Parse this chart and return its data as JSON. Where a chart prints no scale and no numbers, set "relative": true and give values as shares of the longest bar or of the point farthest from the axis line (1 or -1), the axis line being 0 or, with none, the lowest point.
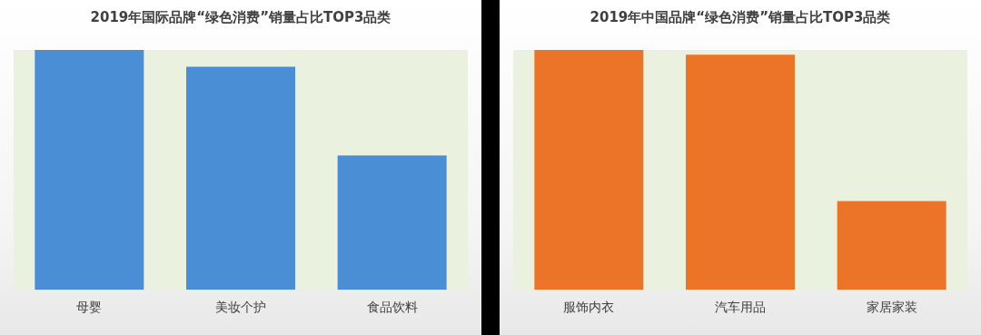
{
  "chart_data": [
    {
      "type": "bar",
      "title": "2019年国际品牌“绿色消费”销量占比TOP3品类",
      "categories": [
        "母婴",
        "美妆个护",
        "食品饮料"
      ],
      "values": [
        1,
        0.93,
        0.56
      ],
      "color": "#4a8fd6",
      "relative": true,
      "grid": false,
      "legend": false
    },
    {
      "type": "bar",
      "title": "2019年中国品牌“绿色消费”销量占比TOP3品类",
      "categories": [
        "服饰内衣",
        "汽车用品",
        "家居家装"
      ],
      "values": [
        1,
        0.98,
        0.37
      ],
      "color": "#eb7428",
      "relative": true,
      "grid": false,
      "legend": false
    }
  ]
}
